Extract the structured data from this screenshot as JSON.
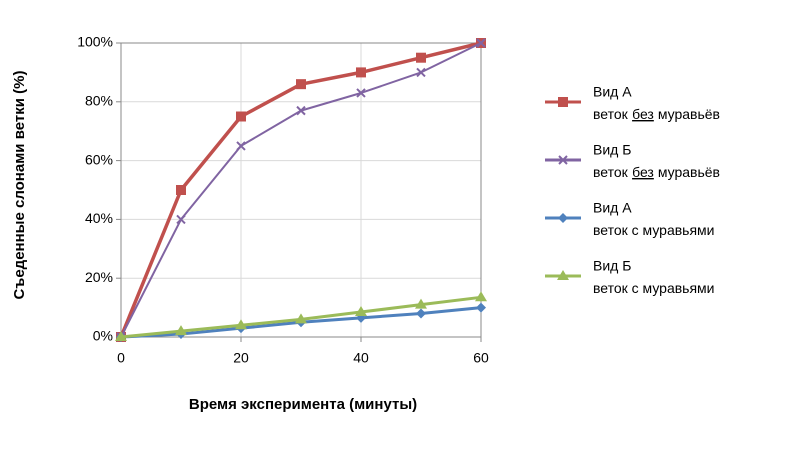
{
  "chart_data": {
    "type": "line",
    "x_label": "Время эксперимента (минуты)",
    "y_label": "Съеденные слонами ветки (%)",
    "x": [
      0,
      10,
      20,
      30,
      40,
      50,
      60
    ],
    "xlim": [
      0,
      60
    ],
    "xticks": [
      0,
      20,
      40,
      60
    ],
    "ylim": [
      0,
      100
    ],
    "yticks": [
      {
        "value": 0,
        "label": "0%"
      },
      {
        "value": 20,
        "label": "20%"
      },
      {
        "value": 40,
        "label": "40%"
      },
      {
        "value": 60,
        "label": "60%"
      },
      {
        "value": 80,
        "label": "80%"
      },
      {
        "value": 100,
        "label": "100%"
      }
    ],
    "grid": true,
    "legend": "right",
    "series": [
      {
        "name": "Вид А",
        "label": [
          "веток",
          "без",
          "муравьёв"
        ],
        "underline": 1,
        "color": "#c0504d",
        "marker": "square",
        "values": [
          0,
          50,
          75,
          86,
          90,
          95,
          100
        ]
      },
      {
        "name": "Вид Б",
        "label": [
          "веток",
          "без",
          "муравьёв"
        ],
        "underline": 1,
        "color": "#8064a2",
        "marker": "x",
        "values": [
          0,
          40,
          65,
          77,
          83,
          90,
          100
        ]
      },
      {
        "name": "Вид А",
        "label": [
          "веток с муравьями"
        ],
        "color": "#4f81bd",
        "marker": "diamond",
        "values": [
          0,
          1,
          3,
          5,
          6.5,
          8,
          10
        ]
      },
      {
        "name": "Вид Б",
        "label": [
          "веток с муравьями"
        ],
        "color": "#9bbb59",
        "marker": "triangle",
        "values": [
          0,
          2,
          4,
          6,
          8.5,
          11,
          13.5
        ]
      }
    ]
  }
}
